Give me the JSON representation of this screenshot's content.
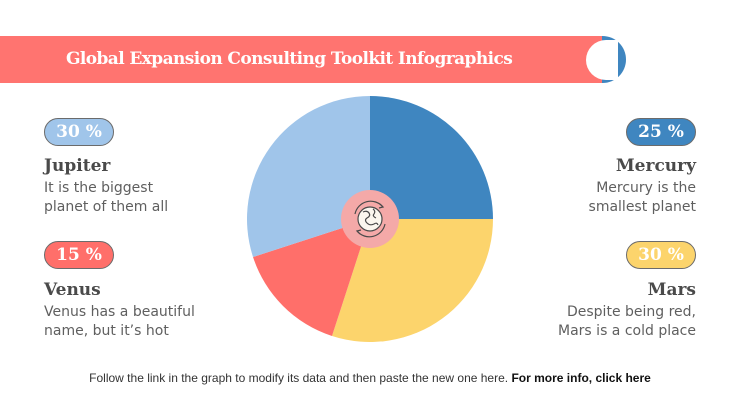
{
  "header": {
    "title": "Global Expansion Consulting Toolkit Infographics"
  },
  "items": [
    {
      "percent": "30 %",
      "name": "Jupiter",
      "desc_line1": "It is the biggest",
      "desc_line2": "planet of them all",
      "color": "#a0c5ea"
    },
    {
      "percent": "15 %",
      "name": "Venus",
      "desc_line1": "Venus has a beautiful",
      "desc_line2": "name, but it’s hot",
      "color": "#ff6f6a"
    },
    {
      "percent": "25 %",
      "name": "Mercury",
      "desc_line1": "Mercury is the",
      "desc_line2": "smallest planet",
      "color": "#3f86c0"
    },
    {
      "percent": "30 %",
      "name": "Mars",
      "desc_line1": "Despite being red,",
      "desc_line2": "Mars is a cold place",
      "color": "#fcd46c"
    }
  ],
  "center_icon": "globe-rotate-icon",
  "footer": {
    "text": "Follow the link in the graph to modify its data and then paste the new one here. ",
    "link": "For more info, click here"
  },
  "chart_data": {
    "type": "pie",
    "title": "Global Expansion Consulting Toolkit Infographics",
    "categories": [
      "Mercury",
      "Mars",
      "Venus",
      "Jupiter"
    ],
    "values": [
      25,
      30,
      15,
      30
    ],
    "colors": [
      "#3f86c0",
      "#fcd46c",
      "#ff6f6a",
      "#a0c5ea"
    ],
    "start_angle": "12 o'clock, clockwise",
    "legend": "side labels with percentage pills"
  }
}
